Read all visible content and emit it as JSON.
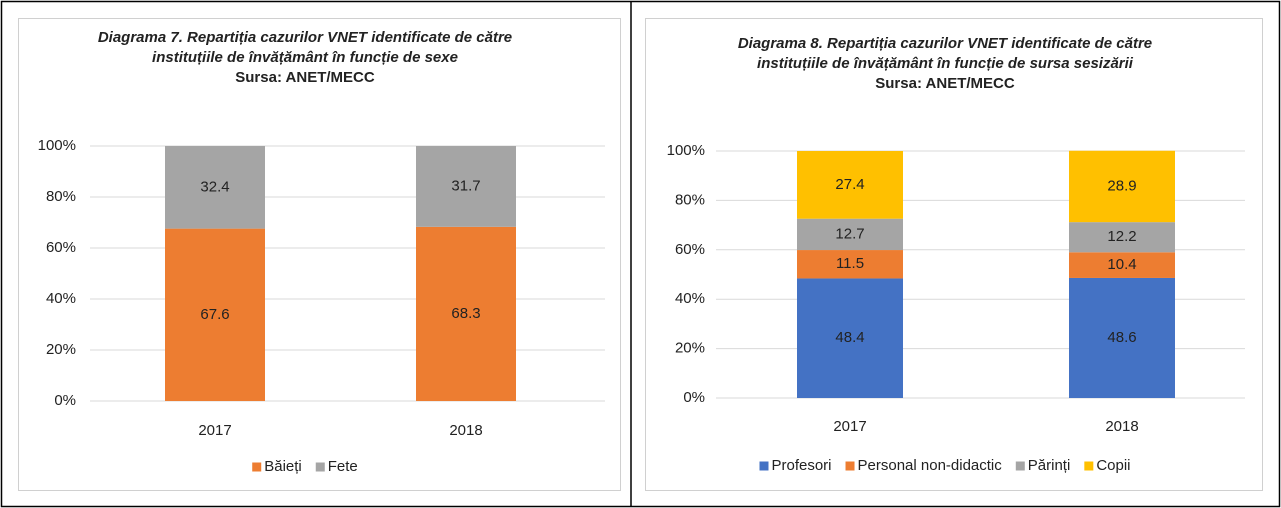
{
  "chart_data": [
    {
      "type": "stacked_bar",
      "title": [
        "Diagrama 7. Repartiția cazurilor VNET identificate de către",
        "instituțiile de învățământ în funcție de sexe"
      ],
      "source": "Sursa: ANET/MECC",
      "categories": [
        "2017",
        "2018"
      ],
      "series": [
        {
          "name": "Băieți",
          "color": "#ED7D31",
          "values": [
            67.6,
            68.3
          ]
        },
        {
          "name": "Fete",
          "color": "#A5A5A5",
          "values": [
            32.4,
            31.7
          ]
        }
      ],
      "ylim": [
        0,
        100
      ],
      "yticks": [
        {
          "value": 0,
          "label": "0%"
        },
        {
          "value": 20,
          "label": "20%"
        },
        {
          "value": 40,
          "label": "40%"
        },
        {
          "value": 60,
          "label": "60%"
        },
        {
          "value": 80,
          "label": "80%"
        },
        {
          "value": 100,
          "label": "100%"
        }
      ],
      "grid": true,
      "legend": "bottom"
    },
    {
      "type": "stacked_bar",
      "title": [
        "Diagrama 8. Repartiția cazurilor VNET identificate de către",
        "instituțiile de învățământ în funcție de sursa sesizării"
      ],
      "source": "Sursa: ANET/MECC",
      "categories": [
        "2017",
        "2018"
      ],
      "series": [
        {
          "name": "Profesori",
          "color": "#4472C4",
          "values": [
            48.4,
            48.6
          ]
        },
        {
          "name": "Personal non-didactic",
          "color": "#ED7D31",
          "values": [
            11.5,
            10.4
          ]
        },
        {
          "name": "Părinți",
          "color": "#A5A5A5",
          "values": [
            12.7,
            12.2
          ]
        },
        {
          "name": "Copii",
          "color": "#FFC000",
          "values": [
            27.4,
            28.9
          ]
        }
      ],
      "ylim": [
        0,
        100
      ],
      "yticks": [
        {
          "value": 0,
          "label": "0%"
        },
        {
          "value": 20,
          "label": "20%"
        },
        {
          "value": 40,
          "label": "40%"
        },
        {
          "value": 60,
          "label": "60%"
        },
        {
          "value": 80,
          "label": "80%"
        },
        {
          "value": 100,
          "label": "100%"
        }
      ],
      "grid": true,
      "legend": "bottom"
    }
  ]
}
